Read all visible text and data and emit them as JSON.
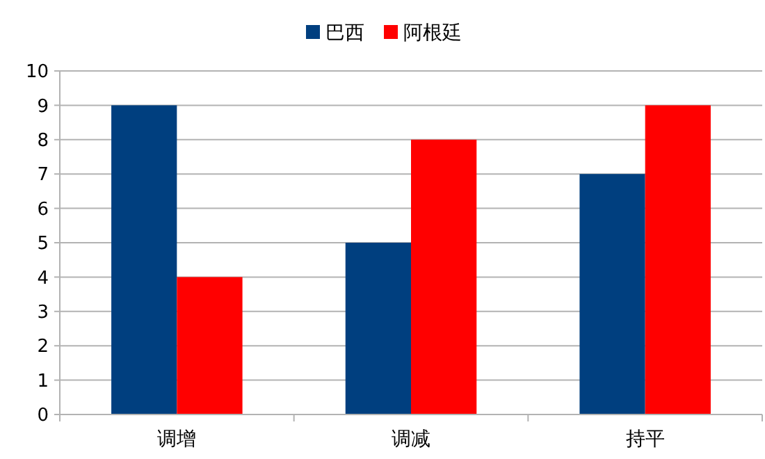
{
  "chart_data": {
    "type": "bar",
    "categories": [
      "调增",
      "调减",
      "持平"
    ],
    "series": [
      {
        "name": "巴西",
        "color": "#003f7f",
        "values": [
          9,
          5,
          7
        ]
      },
      {
        "name": "阿根廷",
        "color": "#ff0000",
        "values": [
          4,
          8,
          9
        ]
      }
    ],
    "ylim": [
      0,
      10
    ],
    "yticks": [
      0,
      1,
      2,
      3,
      4,
      5,
      6,
      7,
      8,
      9,
      10
    ],
    "grid": "y",
    "legend": "top"
  }
}
